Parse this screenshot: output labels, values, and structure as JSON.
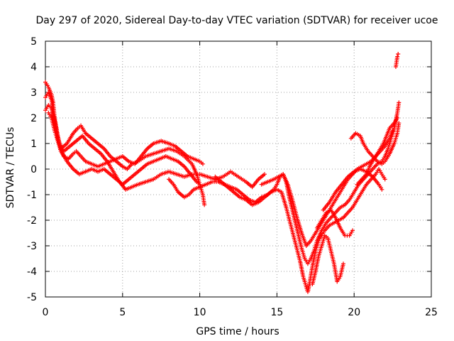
{
  "chart_data": {
    "type": "scatter",
    "title": "Day 297 of 2020, Sidereal Day-to-day VTEC variation (SDTVAR) for receiver ucoe",
    "xlabel": "GPS time / hours",
    "ylabel": "SDTVAR / TECUs",
    "xlim": [
      0,
      25
    ],
    "ylim": [
      -5,
      5
    ],
    "xticks": [
      0,
      5,
      10,
      15,
      20,
      25
    ],
    "yticks": [
      -5,
      -4,
      -3,
      -2,
      -1,
      0,
      1,
      2,
      3,
      4,
      5
    ],
    "grid": true,
    "marker": "plus",
    "color": "#ff0000",
    "series": [
      {
        "points": [
          [
            0.0,
            3.4
          ],
          [
            0.2,
            3.2
          ],
          [
            0.4,
            2.9
          ],
          [
            0.5,
            2.6
          ],
          [
            0.6,
            2.0
          ],
          [
            0.8,
            1.3
          ],
          [
            1.0,
            0.8
          ],
          [
            1.2,
            0.5
          ],
          [
            1.5,
            0.4
          ],
          [
            1.8,
            0.6
          ],
          [
            2.0,
            0.7
          ],
          [
            2.3,
            0.5
          ],
          [
            2.6,
            0.3
          ],
          [
            3.0,
            0.2
          ],
          [
            3.4,
            0.1
          ],
          [
            3.8,
            0.2
          ],
          [
            4.2,
            0.3
          ],
          [
            4.6,
            0.4
          ],
          [
            5.0,
            0.5
          ],
          [
            5.4,
            0.3
          ],
          [
            5.8,
            0.2
          ],
          [
            6.2,
            0.5
          ],
          [
            6.6,
            0.8
          ],
          [
            7.0,
            1.0
          ],
          [
            7.5,
            1.1
          ],
          [
            8.0,
            1.0
          ],
          [
            8.4,
            0.9
          ],
          [
            8.8,
            0.7
          ],
          [
            9.2,
            0.5
          ],
          [
            9.6,
            0.4
          ],
          [
            10.0,
            0.3
          ],
          [
            10.2,
            0.2
          ]
        ]
      },
      {
        "points": [
          [
            0.0,
            2.3
          ],
          [
            0.2,
            2.5
          ],
          [
            0.4,
            2.4
          ],
          [
            0.6,
            1.8
          ],
          [
            0.8,
            1.2
          ],
          [
            1.0,
            0.8
          ],
          [
            1.4,
            1.0
          ],
          [
            1.8,
            1.4
          ],
          [
            2.1,
            1.6
          ],
          [
            2.3,
            1.7
          ],
          [
            2.6,
            1.4
          ],
          [
            3.0,
            1.2
          ],
          [
            3.4,
            1.0
          ],
          [
            3.8,
            0.8
          ],
          [
            4.2,
            0.5
          ],
          [
            4.6,
            0.3
          ],
          [
            5.0,
            0.1
          ],
          [
            5.3,
            0.0
          ],
          [
            5.6,
            0.2
          ],
          [
            6.0,
            0.3
          ],
          [
            6.5,
            0.5
          ],
          [
            7.0,
            0.6
          ],
          [
            7.5,
            0.7
          ],
          [
            8.0,
            0.8
          ],
          [
            8.5,
            0.7
          ],
          [
            9.0,
            0.5
          ],
          [
            9.5,
            0.2
          ],
          [
            9.8,
            -0.2
          ],
          [
            10.0,
            -0.6
          ],
          [
            10.2,
            -1.0
          ],
          [
            10.3,
            -1.4
          ]
        ]
      },
      {
        "points": [
          [
            0.0,
            2.8
          ],
          [
            0.2,
            3.0
          ],
          [
            0.4,
            2.7
          ],
          [
            0.5,
            2.2
          ],
          [
            0.7,
            1.6
          ],
          [
            0.9,
            1.0
          ],
          [
            1.2,
            0.7
          ],
          [
            1.6,
            0.9
          ],
          [
            2.0,
            1.1
          ],
          [
            2.4,
            1.3
          ],
          [
            2.8,
            1.0
          ],
          [
            3.2,
            0.8
          ],
          [
            3.6,
            0.6
          ],
          [
            4.0,
            0.3
          ],
          [
            4.4,
            -0.1
          ],
          [
            4.8,
            -0.5
          ],
          [
            5.2,
            -0.8
          ],
          [
            5.6,
            -0.7
          ],
          [
            6.0,
            -0.6
          ],
          [
            6.5,
            -0.5
          ],
          [
            7.0,
            -0.4
          ],
          [
            7.5,
            -0.2
          ],
          [
            8.0,
            -0.1
          ],
          [
            8.5,
            -0.2
          ],
          [
            9.0,
            -0.3
          ],
          [
            9.5,
            -0.2
          ],
          [
            10.0,
            -0.2
          ],
          [
            10.5,
            -0.3
          ],
          [
            11.0,
            -0.4
          ],
          [
            11.5,
            -0.3
          ],
          [
            12.0,
            -0.1
          ],
          [
            12.5,
            -0.3
          ],
          [
            13.0,
            -0.5
          ],
          [
            13.4,
            -0.7
          ],
          [
            13.8,
            -0.4
          ],
          [
            14.2,
            -0.2
          ]
        ]
      },
      {
        "points": [
          [
            0.2,
            2.2
          ],
          [
            0.4,
            2.0
          ],
          [
            0.6,
            1.5
          ],
          [
            0.8,
            1.1
          ],
          [
            1.0,
            0.7
          ],
          [
            1.4,
            0.3
          ],
          [
            1.8,
            0.0
          ],
          [
            2.2,
            -0.2
          ],
          [
            2.6,
            -0.1
          ],
          [
            3.0,
            0.0
          ],
          [
            3.4,
            -0.1
          ],
          [
            3.8,
            0.0
          ],
          [
            4.2,
            -0.2
          ],
          [
            4.6,
            -0.4
          ],
          [
            5.0,
            -0.6
          ],
          [
            5.4,
            -0.4
          ],
          [
            5.8,
            -0.2
          ],
          [
            6.2,
            0.0
          ],
          [
            6.6,
            0.2
          ],
          [
            7.0,
            0.3
          ],
          [
            7.4,
            0.4
          ],
          [
            7.8,
            0.5
          ],
          [
            8.2,
            0.4
          ],
          [
            8.6,
            0.3
          ],
          [
            9.0,
            0.1
          ],
          [
            9.4,
            -0.2
          ],
          [
            9.8,
            -0.5
          ],
          [
            10.0,
            -0.6
          ]
        ]
      },
      {
        "points": [
          [
            8.0,
            -0.4
          ],
          [
            8.3,
            -0.6
          ],
          [
            8.6,
            -0.9
          ],
          [
            9.0,
            -1.1
          ],
          [
            9.3,
            -1.0
          ],
          [
            9.6,
            -0.8
          ],
          [
            10.0,
            -0.7
          ],
          [
            10.4,
            -0.6
          ],
          [
            10.8,
            -0.5
          ],
          [
            11.2,
            -0.5
          ],
          [
            11.6,
            -0.6
          ],
          [
            12.0,
            -0.7
          ],
          [
            12.4,
            -0.8
          ],
          [
            12.8,
            -1.0
          ],
          [
            13.2,
            -1.2
          ],
          [
            13.6,
            -1.3
          ],
          [
            14.0,
            -1.1
          ],
          [
            14.4,
            -1.0
          ],
          [
            14.8,
            -0.8
          ],
          [
            15.0,
            -0.6
          ],
          [
            15.2,
            -0.3
          ],
          [
            15.4,
            -0.2
          ],
          [
            15.6,
            -0.5
          ],
          [
            15.8,
            -1.1
          ],
          [
            16.0,
            -1.6
          ],
          [
            16.2,
            -2.1
          ],
          [
            16.4,
            -2.6
          ],
          [
            16.6,
            -3.1
          ],
          [
            16.8,
            -3.5
          ],
          [
            17.0,
            -3.7
          ],
          [
            17.2,
            -3.5
          ],
          [
            17.4,
            -3.2
          ],
          [
            17.6,
            -2.8
          ],
          [
            17.9,
            -2.4
          ],
          [
            18.2,
            -2.1
          ],
          [
            18.5,
            -1.9
          ],
          [
            18.8,
            -1.7
          ],
          [
            19.1,
            -1.5
          ],
          [
            19.4,
            -1.4
          ],
          [
            19.7,
            -1.2
          ],
          [
            20.0,
            -0.9
          ],
          [
            20.3,
            -0.6
          ],
          [
            20.6,
            -0.4
          ],
          [
            20.9,
            -0.2
          ],
          [
            21.2,
            0.0
          ],
          [
            21.5,
            0.2
          ],
          [
            21.8,
            0.3
          ],
          [
            22.0,
            0.5
          ],
          [
            22.2,
            0.8
          ],
          [
            22.4,
            1.2
          ],
          [
            22.6,
            1.6
          ],
          [
            22.8,
            2.2
          ],
          [
            22.9,
            2.6
          ]
        ]
      },
      {
        "points": [
          [
            11.0,
            -0.3
          ],
          [
            11.4,
            -0.5
          ],
          [
            11.8,
            -0.7
          ],
          [
            12.2,
            -0.9
          ],
          [
            12.6,
            -1.1
          ],
          [
            13.0,
            -1.2
          ],
          [
            13.4,
            -1.4
          ],
          [
            13.8,
            -1.3
          ],
          [
            14.2,
            -1.1
          ],
          [
            14.6,
            -0.9
          ],
          [
            15.0,
            -0.8
          ],
          [
            15.3,
            -0.9
          ],
          [
            15.6,
            -1.5
          ],
          [
            15.9,
            -2.2
          ],
          [
            16.2,
            -2.9
          ],
          [
            16.5,
            -3.6
          ],
          [
            16.7,
            -4.2
          ],
          [
            16.9,
            -4.6
          ],
          [
            17.0,
            -4.8
          ],
          [
            17.1,
            -4.5
          ],
          [
            17.3,
            -3.8
          ],
          [
            17.5,
            -3.2
          ],
          [
            17.7,
            -2.8
          ],
          [
            17.9,
            -2.6
          ],
          [
            18.1,
            -2.4
          ],
          [
            18.4,
            -2.2
          ],
          [
            18.7,
            -2.1
          ],
          [
            19.0,
            -2.0
          ],
          [
            19.3,
            -1.9
          ],
          [
            19.6,
            -1.7
          ],
          [
            19.9,
            -1.5
          ],
          [
            20.2,
            -1.2
          ],
          [
            20.5,
            -0.9
          ],
          [
            20.8,
            -0.6
          ],
          [
            21.1,
            -0.4
          ],
          [
            21.4,
            -0.2
          ],
          [
            21.6,
            0.0
          ],
          [
            21.8,
            -0.2
          ],
          [
            22.0,
            -0.4
          ]
        ]
      },
      {
        "points": [
          [
            14.0,
            -0.6
          ],
          [
            14.4,
            -0.5
          ],
          [
            14.8,
            -0.4
          ],
          [
            15.1,
            -0.3
          ],
          [
            15.4,
            -0.2
          ],
          [
            15.7,
            -0.6
          ],
          [
            16.0,
            -1.2
          ],
          [
            16.3,
            -1.9
          ],
          [
            16.6,
            -2.5
          ],
          [
            16.9,
            -3.0
          ],
          [
            17.2,
            -2.8
          ],
          [
            17.5,
            -2.5
          ],
          [
            17.8,
            -2.2
          ],
          [
            18.1,
            -1.9
          ],
          [
            18.4,
            -1.6
          ],
          [
            18.7,
            -1.3
          ],
          [
            19.0,
            -1.0
          ],
          [
            19.3,
            -0.7
          ],
          [
            19.6,
            -0.4
          ],
          [
            19.9,
            -0.2
          ],
          [
            20.2,
            0.0
          ],
          [
            20.5,
            0.1
          ],
          [
            20.8,
            0.2
          ],
          [
            21.1,
            0.3
          ],
          [
            21.4,
            0.5
          ],
          [
            21.7,
            0.7
          ],
          [
            22.0,
            0.9
          ],
          [
            22.3,
            1.2
          ],
          [
            22.5,
            1.5
          ]
        ]
      },
      {
        "points": [
          [
            17.3,
            -4.5
          ],
          [
            17.5,
            -4.0
          ],
          [
            17.7,
            -3.4
          ],
          [
            17.9,
            -3.0
          ],
          [
            18.1,
            -2.6
          ],
          [
            18.3,
            -2.7
          ],
          [
            18.5,
            -3.2
          ],
          [
            18.7,
            -3.7
          ],
          [
            18.9,
            -4.4
          ],
          [
            19.1,
            -4.2
          ],
          [
            19.3,
            -3.7
          ]
        ]
      },
      {
        "points": [
          [
            17.6,
            -2.3
          ],
          [
            17.9,
            -2.0
          ],
          [
            18.2,
            -1.7
          ],
          [
            18.5,
            -1.6
          ],
          [
            18.8,
            -1.9
          ],
          [
            19.1,
            -2.3
          ],
          [
            19.4,
            -2.6
          ],
          [
            19.7,
            -2.6
          ],
          [
            19.9,
            -2.4
          ]
        ]
      },
      {
        "points": [
          [
            19.8,
            1.2
          ],
          [
            20.1,
            1.4
          ],
          [
            20.4,
            1.3
          ],
          [
            20.6,
            1.0
          ],
          [
            20.9,
            0.7
          ],
          [
            21.2,
            0.5
          ],
          [
            21.5,
            0.3
          ],
          [
            21.8,
            0.2
          ],
          [
            22.0,
            0.3
          ],
          [
            22.3,
            0.6
          ],
          [
            22.6,
            1.0
          ],
          [
            22.8,
            1.4
          ],
          [
            22.9,
            1.8
          ]
        ]
      },
      {
        "points": [
          [
            18.0,
            -1.6
          ],
          [
            18.4,
            -1.3
          ],
          [
            18.8,
            -0.9
          ],
          [
            19.2,
            -0.6
          ],
          [
            19.6,
            -0.3
          ],
          [
            20.0,
            -0.1
          ],
          [
            20.4,
            0.0
          ],
          [
            20.8,
            -0.1
          ],
          [
            21.2,
            -0.3
          ],
          [
            21.6,
            -0.6
          ],
          [
            21.8,
            -0.8
          ]
        ]
      },
      {
        "points": [
          [
            20.2,
            -0.6
          ],
          [
            20.5,
            -0.4
          ],
          [
            20.8,
            -0.2
          ],
          [
            21.0,
            0.1
          ],
          [
            21.3,
            0.4
          ],
          [
            21.6,
            0.7
          ],
          [
            21.9,
            1.0
          ],
          [
            22.1,
            1.3
          ],
          [
            22.3,
            1.6
          ],
          [
            22.6,
            1.8
          ],
          [
            22.8,
            2.0
          ]
        ]
      },
      {
        "points": [
          [
            22.7,
            4.0
          ],
          [
            22.75,
            4.2
          ],
          [
            22.8,
            4.4
          ],
          [
            22.85,
            4.5
          ]
        ]
      }
    ]
  }
}
